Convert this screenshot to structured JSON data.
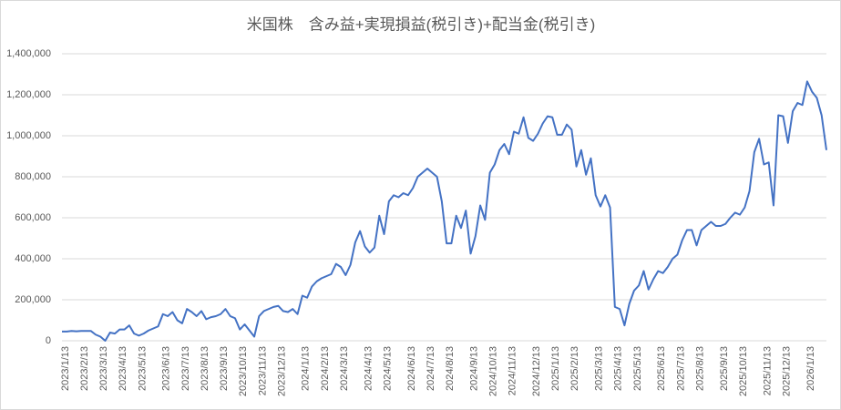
{
  "chart_data": {
    "type": "line",
    "title": "米国株　含み益+実現損益(税引き)+配当金(税引き)",
    "categories": [
      "2023/1/13",
      null,
      null,
      null,
      "2023/2/13",
      null,
      null,
      null,
      "2023/3/13",
      null,
      null,
      null,
      "2023/4/13",
      null,
      null,
      null,
      "2023/5/13",
      null,
      null,
      null,
      null,
      "2023/6/13",
      null,
      null,
      null,
      "2023/7/13",
      null,
      null,
      null,
      "2023/8/13",
      null,
      null,
      null,
      "2023/9/13",
      null,
      null,
      null,
      "2023/10/13",
      null,
      null,
      null,
      "2023/11/13",
      null,
      null,
      null,
      "2023/12/13",
      null,
      null,
      null,
      null,
      "2024/1/13",
      null,
      null,
      null,
      "2024/2/13",
      null,
      null,
      null,
      "2024/3/13",
      null,
      null,
      null,
      null,
      "2024/4/13",
      null,
      null,
      null,
      "2024/5/13",
      null,
      null,
      null,
      null,
      "2024/6/13",
      null,
      null,
      null,
      "2024/7/13",
      null,
      null,
      null,
      "2024/8/13",
      null,
      null,
      null,
      null,
      "2024/9/13",
      null,
      null,
      null,
      "2024/10/13",
      null,
      null,
      null,
      "2024/11/13",
      null,
      null,
      null,
      null,
      "2024/12/13",
      null,
      null,
      null,
      "2025/1/13",
      null,
      null,
      null,
      "2025/2/13",
      null,
      null,
      null,
      null,
      "2025/3/13",
      null,
      null,
      null,
      "2025/4/13",
      null,
      null,
      null,
      "2025/5/13",
      null,
      null,
      null,
      null,
      "2025/6/13",
      null,
      null,
      null,
      "2025/7/13",
      null,
      null,
      null,
      "2025/8/13",
      null,
      null,
      null,
      null,
      "2025/9/13",
      null,
      null,
      null,
      "2025/10/13",
      null,
      null,
      null,
      null,
      "2025/11/13",
      null,
      null,
      null,
      "2025/12/13",
      null,
      null,
      null,
      null,
      "2026/1/13",
      null,
      null,
      null,
      null
    ],
    "series": [
      {
        "color": "#4472c4",
        "values": [
          45000,
          45000,
          48000,
          46000,
          48000,
          48000,
          48000,
          30000,
          20000,
          0,
          40000,
          35000,
          55000,
          55000,
          75000,
          35000,
          25000,
          35000,
          50000,
          60000,
          70000,
          130000,
          120000,
          140000,
          100000,
          85000,
          155000,
          140000,
          120000,
          145000,
          105000,
          115000,
          120000,
          130000,
          155000,
          120000,
          110000,
          55000,
          80000,
          50000,
          20000,
          120000,
          145000,
          155000,
          165000,
          170000,
          145000,
          140000,
          155000,
          130000,
          220000,
          210000,
          265000,
          290000,
          305000,
          315000,
          325000,
          375000,
          360000,
          320000,
          370000,
          480000,
          535000,
          460000,
          430000,
          455000,
          610000,
          520000,
          680000,
          710000,
          700000,
          720000,
          710000,
          745000,
          800000,
          820000,
          840000,
          820000,
          800000,
          680000,
          475000,
          475000,
          610000,
          550000,
          635000,
          425000,
          510000,
          660000,
          590000,
          820000,
          860000,
          930000,
          960000,
          910000,
          1020000,
          1010000,
          1090000,
          990000,
          975000,
          1010000,
          1060000,
          1095000,
          1090000,
          1005000,
          1005000,
          1055000,
          1030000,
          850000,
          930000,
          810000,
          890000,
          710000,
          655000,
          710000,
          650000,
          165000,
          155000,
          75000,
          180000,
          245000,
          270000,
          340000,
          250000,
          300000,
          340000,
          330000,
          360000,
          400000,
          420000,
          490000,
          540000,
          540000,
          465000,
          540000,
          560000,
          580000,
          560000,
          560000,
          570000,
          600000,
          625000,
          615000,
          650000,
          730000,
          920000,
          985000,
          860000,
          870000,
          660000,
          1100000,
          1095000,
          965000,
          1120000,
          1160000,
          1150000,
          1265000,
          1215000,
          1185000,
          1100000,
          930000
        ]
      }
    ],
    "ylim": [
      0,
      1400000
    ],
    "yticks": [
      0,
      {
        "value": 200000,
        "label": "200,000"
      },
      {
        "value": 400000,
        "label": "400,000"
      },
      {
        "value": 600000,
        "label": "600,000"
      },
      {
        "value": 800000,
        "label": "800,000"
      },
      {
        "value": 1000000,
        "label": "1,000,000"
      },
      {
        "value": 1200000,
        "label": "1,200,000"
      },
      {
        "value": 1400000,
        "label": "1,400,000"
      }
    ],
    "grid": true
  }
}
